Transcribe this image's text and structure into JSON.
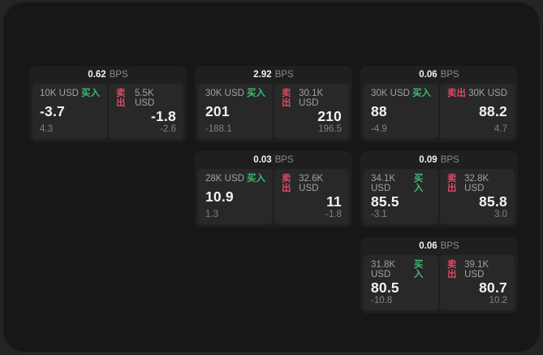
{
  "labels": {
    "bps_unit": "BPS",
    "buy": "买入",
    "sell": "卖出"
  },
  "colors": {
    "buy_green": "#3eba71",
    "sell_red": "#dc4a64",
    "app_background": "#171717",
    "card_background": "#1f1f1f",
    "panel_background": "#282828"
  },
  "cards": [
    {
      "bps": "0.62",
      "buy": {
        "notional": "10K USD",
        "price": "-3.7",
        "change": "4.3"
      },
      "sell": {
        "notional": "5.5K USD",
        "price": "-1.8",
        "change": "-2.6"
      }
    },
    {
      "bps": "2.92",
      "buy": {
        "notional": "30K USD",
        "price": "201",
        "change": "-188.1"
      },
      "sell": {
        "notional": "30.1K USD",
        "price": "210",
        "change": "196.5"
      }
    },
    {
      "bps": "0.06",
      "buy": {
        "notional": "30K USD",
        "price": "88",
        "change": "-4.9"
      },
      "sell": {
        "notional": "30K USD",
        "price": "88.2",
        "change": "4.7"
      }
    },
    {
      "bps": "0.03",
      "buy": {
        "notional": "28K USD",
        "price": "10.9",
        "change": "1.3"
      },
      "sell": {
        "notional": "32.6K USD",
        "price": "11",
        "change": "-1.8"
      }
    },
    {
      "bps": "0.09",
      "buy": {
        "notional": "34.1K USD",
        "price": "85.5",
        "change": "-3.1"
      },
      "sell": {
        "notional": "32.8K USD",
        "price": "85.8",
        "change": "3.0"
      }
    },
    {
      "bps": "0.06",
      "buy": {
        "notional": "31.8K USD",
        "price": "80.5",
        "change": "-10.8"
      },
      "sell": {
        "notional": "39.1K USD",
        "price": "80.7",
        "change": "10.2"
      }
    }
  ]
}
